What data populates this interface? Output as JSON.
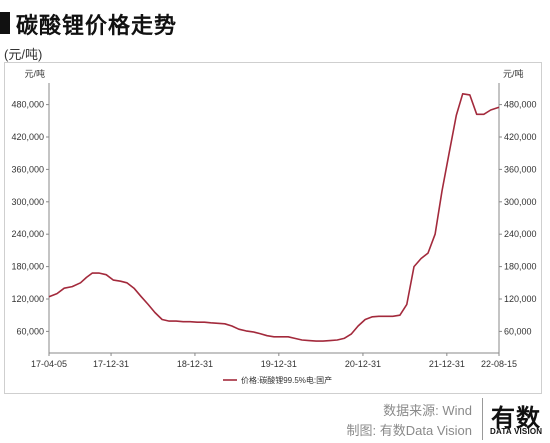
{
  "header": {
    "title": "碳酸锂价格走势",
    "unit": "(元/吨)"
  },
  "footer": {
    "source": "数据来源: Wind",
    "credit": "制图: 有数Data Vision"
  },
  "logo": {
    "main": "有数",
    "sub": "DATA VISION"
  },
  "chart_data": {
    "type": "line",
    "ylabel_left": "元/吨",
    "ylabel_right": "元/吨",
    "ylim": [
      20000,
      520000
    ],
    "yticks": [
      60000,
      120000,
      180000,
      240000,
      300000,
      360000,
      420000,
      480000
    ],
    "ytick_labels": [
      "60,000",
      "120,000",
      "180,000",
      "240,000",
      "300,000",
      "360,000",
      "420,000",
      "480,000"
    ],
    "xlim": [
      "2017-04-05",
      "2022-08-15"
    ],
    "xticks": [
      "2017-04-05",
      "2017-12-31",
      "2018-12-31",
      "2019-12-31",
      "2020-12-31",
      "2021-12-31",
      "2022-08-15"
    ],
    "xtick_labels": [
      "17-04-05",
      "17-12-31",
      "18-12-31",
      "19-12-31",
      "20-12-31",
      "21-12-31",
      "22-08-15"
    ],
    "legend_position": "bottom-left",
    "grid": false,
    "series": [
      {
        "name": "价格:碳酸锂99.5%电:国产",
        "color": "#a32a3c",
        "x": [
          "2017-04-05",
          "2017-05-10",
          "2017-06-10",
          "2017-07-15",
          "2017-08-20",
          "2017-09-15",
          "2017-10-10",
          "2017-11-10",
          "2017-12-10",
          "2018-01-10",
          "2018-02-10",
          "2018-03-10",
          "2018-04-10",
          "2018-05-10",
          "2018-06-10",
          "2018-07-10",
          "2018-08-10",
          "2018-09-10",
          "2018-10-10",
          "2018-11-10",
          "2018-12-10",
          "2019-01-10",
          "2019-02-10",
          "2019-03-10",
          "2019-04-10",
          "2019-05-10",
          "2019-06-10",
          "2019-07-10",
          "2019-08-10",
          "2019-09-10",
          "2019-10-10",
          "2019-11-10",
          "2019-12-10",
          "2020-01-10",
          "2020-02-10",
          "2020-03-10",
          "2020-04-10",
          "2020-05-10",
          "2020-06-10",
          "2020-07-10",
          "2020-08-10",
          "2020-09-10",
          "2020-10-10",
          "2020-11-10",
          "2020-12-10",
          "2021-01-10",
          "2021-02-10",
          "2021-03-10",
          "2021-04-10",
          "2021-05-10",
          "2021-06-10",
          "2021-07-10",
          "2021-08-10",
          "2021-09-10",
          "2021-10-10",
          "2021-11-10",
          "2021-12-10",
          "2022-01-10",
          "2022-02-10",
          "2022-03-10",
          "2022-04-10",
          "2022-05-10",
          "2022-06-10",
          "2022-07-10",
          "2022-08-15"
        ],
        "values": [
          124000,
          130000,
          140000,
          143000,
          150000,
          160000,
          168000,
          168000,
          165000,
          155000,
          153000,
          150000,
          140000,
          125000,
          110000,
          95000,
          82000,
          79000,
          79000,
          78000,
          78000,
          77000,
          77000,
          76000,
          75000,
          74000,
          70000,
          64000,
          61000,
          59000,
          56000,
          52000,
          50000,
          50000,
          50000,
          47000,
          44000,
          43000,
          42000,
          42000,
          43000,
          44000,
          47000,
          55000,
          70000,
          82000,
          87000,
          88000,
          88000,
          88000,
          90000,
          110000,
          180000,
          195000,
          205000,
          240000,
          320000,
          390000,
          460000,
          500000,
          498000,
          462000,
          462000,
          470000,
          475000
        ]
      }
    ]
  }
}
